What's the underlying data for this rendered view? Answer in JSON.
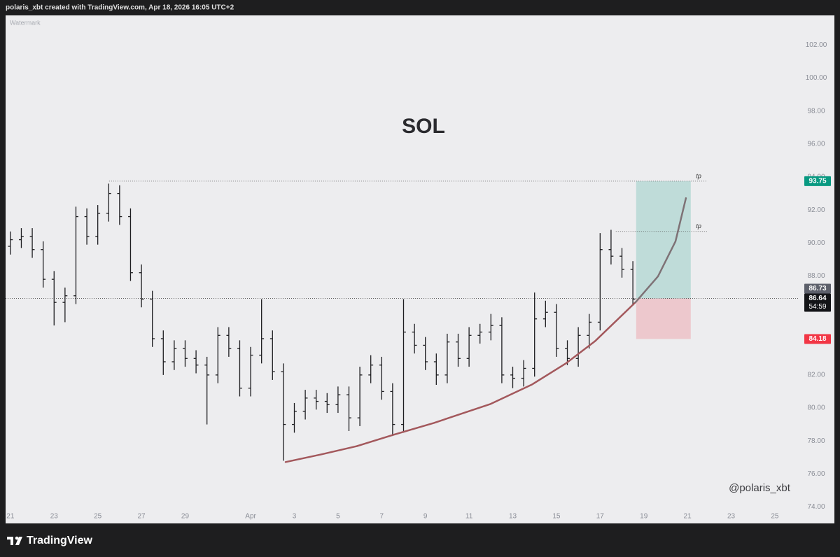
{
  "header": "polaris_xbt created with TradingView.com, Apr 18, 2026 16:05 UTC+2",
  "footer": "TradingView",
  "chart_data": {
    "type": "ohlc",
    "title": "SOL",
    "watermark": "Watermark",
    "annotation": "@polaris_xbt",
    "color": "#1c1c1f",
    "x": [
      0,
      0.5,
      1,
      1.5,
      2,
      2.5,
      3,
      3.5,
      4,
      4.5,
      5,
      5.5,
      6,
      6.5,
      7,
      7.5,
      8,
      8.5,
      9,
      9.5,
      10,
      10.5,
      11,
      11.5,
      12,
      12.5,
      13,
      13.5,
      14,
      14.5,
      15,
      15.5,
      16,
      16.5,
      17,
      17.5,
      18,
      18.5,
      19,
      19.5,
      20,
      20.5,
      21,
      21.5,
      22,
      22.5,
      23,
      23.5,
      24,
      24.5,
      25,
      25.5,
      26,
      26.5,
      27,
      27.5,
      28,
      28.5
    ],
    "open": [
      89.8,
      90.2,
      90.4,
      89.6,
      87.8,
      86.4,
      86.8,
      91.6,
      90.4,
      91.8,
      93.0,
      91.6,
      88.2,
      86.6,
      84.2,
      82.8,
      83.6,
      83.0,
      82.6,
      82.0,
      84.4,
      83.6,
      81.2,
      83.2,
      84.2,
      82.2,
      79.0,
      79.8,
      80.6,
      80.4,
      80.2,
      80.8,
      79.4,
      82.0,
      82.6,
      81.0,
      79.0,
      84.6,
      83.8,
      82.8,
      82.0,
      84.0,
      83.0,
      84.4,
      84.6,
      85.0,
      82.0,
      81.8,
      82.4,
      85.4,
      85.8,
      83.6,
      83.0,
      84.4,
      85.2,
      89.6,
      89.2,
      88.4
    ],
    "high": [
      90.7,
      90.9,
      90.9,
      90.1,
      88.3,
      87.3,
      92.2,
      92.1,
      92.3,
      93.6,
      93.5,
      92.1,
      88.7,
      87.1,
      84.7,
      84.1,
      84.1,
      83.5,
      83.1,
      84.9,
      84.9,
      84.1,
      83.7,
      86.6,
      84.7,
      82.7,
      80.3,
      81.1,
      81.1,
      80.9,
      81.3,
      81.3,
      82.5,
      83.2,
      83.1,
      81.5,
      86.6,
      85.1,
      84.3,
      83.3,
      84.5,
      84.5,
      84.9,
      85.1,
      85.7,
      85.5,
      82.5,
      82.9,
      87.0,
      86.5,
      86.3,
      84.1,
      84.9,
      85.7,
      90.6,
      90.8,
      89.7,
      88.9
    ],
    "low": [
      89.3,
      89.7,
      89.1,
      87.3,
      85.0,
      85.2,
      86.3,
      89.9,
      89.9,
      91.3,
      91.1,
      87.7,
      86.1,
      83.7,
      82.0,
      82.3,
      82.5,
      82.1,
      79.0,
      81.5,
      83.1,
      80.7,
      80.7,
      82.7,
      81.7,
      76.8,
      78.5,
      79.3,
      79.9,
      79.7,
      79.7,
      78.6,
      78.9,
      81.5,
      80.5,
      78.3,
      78.5,
      83.3,
      82.3,
      81.4,
      81.5,
      82.5,
      82.5,
      83.9,
      84.1,
      81.5,
      81.2,
      81.3,
      81.9,
      84.9,
      83.1,
      82.6,
      82.5,
      83.6,
      84.7,
      88.7,
      87.9,
      86.2
    ],
    "close": [
      90.2,
      90.4,
      89.6,
      87.8,
      86.4,
      86.8,
      91.6,
      90.4,
      91.8,
      93.0,
      91.6,
      88.2,
      86.6,
      84.2,
      82.8,
      83.6,
      83.0,
      82.6,
      82.0,
      84.4,
      83.6,
      81.2,
      83.2,
      84.2,
      82.2,
      79.0,
      79.8,
      80.6,
      80.4,
      80.2,
      80.8,
      79.4,
      82.0,
      82.6,
      81.0,
      79.0,
      84.6,
      83.8,
      82.8,
      82.0,
      84.0,
      83.0,
      84.4,
      84.6,
      85.0,
      82.0,
      81.8,
      82.4,
      85.4,
      85.8,
      83.6,
      83.0,
      84.4,
      85.2,
      89.6,
      89.2,
      88.4,
      86.6
    ],
    "xlim": [
      -0.22,
      36.06
    ],
    "ylim": [
      73.0,
      103.8
    ],
    "xticks": [
      {
        "value": 0,
        "label": "21"
      },
      {
        "value": 2,
        "label": "23"
      },
      {
        "value": 4,
        "label": "25"
      },
      {
        "value": 6,
        "label": "27"
      },
      {
        "value": 8,
        "label": "29"
      },
      {
        "value": 11,
        "label": "Apr"
      },
      {
        "value": 13,
        "label": "3"
      },
      {
        "value": 15,
        "label": "5"
      },
      {
        "value": 17,
        "label": "7"
      },
      {
        "value": 19,
        "label": "9"
      },
      {
        "value": 21,
        "label": "11"
      },
      {
        "value": 23,
        "label": "13"
      },
      {
        "value": 25,
        "label": "15"
      },
      {
        "value": 27,
        "label": "17"
      },
      {
        "value": 29,
        "label": "19"
      },
      {
        "value": 31,
        "label": "21"
      },
      {
        "value": 33,
        "label": "23"
      },
      {
        "value": 35,
        "label": "25"
      }
    ],
    "yticks": [
      {
        "value": 74,
        "label": "74.00"
      },
      {
        "value": 76,
        "label": "76.00"
      },
      {
        "value": 78,
        "label": "78.00"
      },
      {
        "value": 80,
        "label": "80.00"
      },
      {
        "value": 82,
        "label": "82.00"
      },
      {
        "value": 84,
        "label": "84.00"
      },
      {
        "value": 86,
        "label": "86.00"
      },
      {
        "value": 88,
        "label": "88.00"
      },
      {
        "value": 90,
        "label": "90.00"
      },
      {
        "value": 92,
        "label": "92.00"
      },
      {
        "value": 94,
        "label": "94.00"
      },
      {
        "value": 96,
        "label": "96.00"
      },
      {
        "value": 98,
        "label": "98.00"
      },
      {
        "value": 100,
        "label": "100.00"
      },
      {
        "value": 102,
        "label": "102.00"
      }
    ],
    "levels": [
      {
        "label": "tp",
        "value": 93.75,
        "x": [
          4.52,
          31.89
        ]
      },
      {
        "label": "tp",
        "value": 90.7,
        "x": [
          27.72,
          31.89
        ]
      }
    ],
    "last_price": {
      "value": 86.64,
      "countdown": "54:59"
    },
    "price_labels": [
      {
        "value": 93.75,
        "color": "#089981"
      },
      {
        "value": 86.73,
        "color": "#5d606b"
      },
      {
        "value": 84.18,
        "color": "#f23645"
      }
    ],
    "position": {
      "entry": 86.64,
      "target": 93.75,
      "stop": 84.18,
      "x": [
        28.65,
        31.15
      ]
    },
    "curves": [
      {
        "color": "#a3585c",
        "x": [
          12.6,
          14.26,
          15.87,
          17.53,
          19.39,
          21.96,
          23.88,
          25.42,
          26.76,
          28.62
        ],
        "y": [
          76.72,
          77.19,
          77.69,
          78.37,
          79.09,
          80.23,
          81.42,
          82.69,
          84.04,
          86.41
        ]
      },
      {
        "color": "#7e7276",
        "x": [
          28.62,
          29.65,
          30.45,
          30.93
        ],
        "y": [
          86.41,
          87.98,
          90.1,
          92.72
        ]
      }
    ]
  }
}
